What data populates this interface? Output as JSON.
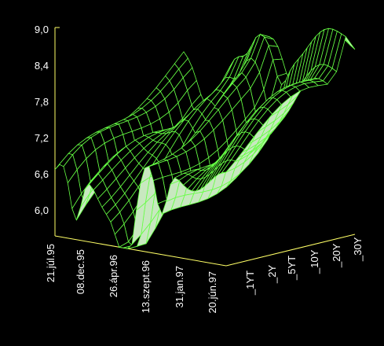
{
  "chart_data": {
    "type": "surface",
    "z_axis": {
      "ticks": [
        "9,0",
        "8,4",
        "7,8",
        "7,2",
        "6,6",
        "6,0"
      ],
      "range": [
        5.4,
        9.0
      ]
    },
    "date_axis": {
      "ticks": [
        "21.júl.95",
        "08.dec.95",
        "26.ápr.96",
        "13.szept.96",
        "31.jan.97",
        "20.jún.97"
      ]
    },
    "maturity_axis": {
      "ticks": [
        "_1YT",
        "_2Y",
        "_5YT",
        "_10Y",
        "_20Y",
        "_30Y"
      ]
    },
    "colors": {
      "background": "#000000",
      "mesh": "#66ff44",
      "fill": "#c8e8c0",
      "axes": "#ffff66",
      "labels": "#ffffff"
    }
  }
}
